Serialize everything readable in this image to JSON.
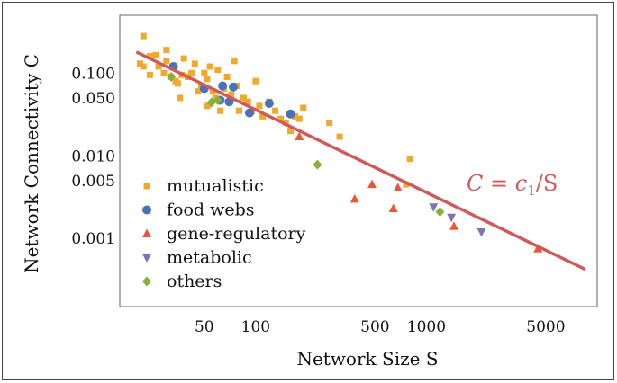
{
  "chart_data": {
    "type": "scatter",
    "xlabel": "Network Size S",
    "ylabel": "Network Connectivity C",
    "xscale": "log",
    "yscale": "log",
    "xlim": [
      16,
      10000
    ],
    "ylim": [
      0.00015,
      0.5
    ],
    "grid": false,
    "legend_position": "bottom-left",
    "x_ticks": [
      {
        "value": 50,
        "label": "50"
      },
      {
        "value": 100,
        "label": "100"
      },
      {
        "value": 500,
        "label": "500"
      },
      {
        "value": 1000,
        "label": "1000"
      },
      {
        "value": 5000,
        "label": "5000"
      }
    ],
    "y_ticks": [
      {
        "value": 0.1,
        "label": "0.100"
      },
      {
        "value": 0.05,
        "label": "0.050"
      },
      {
        "value": 0.01,
        "label": "0.010"
      },
      {
        "value": 0.005,
        "label": "0.005"
      },
      {
        "value": 0.001,
        "label": "0.001"
      }
    ],
    "fit_line": {
      "label": "C = c1/S",
      "label_parts": {
        "lhs": "C",
        "eq": " = ",
        "c": "c",
        "sub": "1",
        "rest": "/S"
      },
      "color": "#d05a5a",
      "x_range": [
        20,
        8500
      ],
      "c1": 3.6
    },
    "series": [
      {
        "name": "mutualistic",
        "marker": "square",
        "color": "#f0a830",
        "points": [
          [
            22,
            0.28
          ],
          [
            21,
            0.13
          ],
          [
            22,
            0.12
          ],
          [
            24,
            0.16
          ],
          [
            24,
            0.095
          ],
          [
            26,
            0.165
          ],
          [
            27,
            0.12
          ],
          [
            29,
            0.1
          ],
          [
            30,
            0.14
          ],
          [
            30,
            0.19
          ],
          [
            32,
            0.09
          ],
          [
            34,
            0.08
          ],
          [
            35,
            0.075
          ],
          [
            36,
            0.05
          ],
          [
            37,
            0.095
          ],
          [
            38,
            0.15
          ],
          [
            40,
            0.09
          ],
          [
            42,
            0.1
          ],
          [
            44,
            0.13
          ],
          [
            46,
            0.06
          ],
          [
            48,
            0.07
          ],
          [
            50,
            0.1
          ],
          [
            52,
            0.085
          ],
          [
            52,
            0.04
          ],
          [
            54,
            0.12
          ],
          [
            56,
            0.06
          ],
          [
            58,
            0.05
          ],
          [
            60,
            0.11
          ],
          [
            62,
            0.035
          ],
          [
            65,
            0.065
          ],
          [
            68,
            0.09
          ],
          [
            70,
            0.045
          ],
          [
            72,
            0.055
          ],
          [
            75,
            0.14
          ],
          [
            78,
            0.07
          ],
          [
            80,
            0.035
          ],
          [
            85,
            0.05
          ],
          [
            90,
            0.045
          ],
          [
            95,
            0.035
          ],
          [
            100,
            0.08
          ],
          [
            105,
            0.04
          ],
          [
            110,
            0.03
          ],
          [
            120,
            0.045
          ],
          [
            130,
            0.035
          ],
          [
            140,
            0.028
          ],
          [
            150,
            0.025
          ],
          [
            160,
            0.02
          ],
          [
            170,
            0.03
          ],
          [
            180,
            0.028
          ],
          [
            190,
            0.038
          ],
          [
            270,
            0.025
          ],
          [
            310,
            0.017
          ],
          [
            760,
            0.0045
          ],
          [
            800,
            0.0092
          ]
        ]
      },
      {
        "name": "food webs",
        "marker": "circle",
        "color": "#4a72b8",
        "points": [
          [
            33,
            0.12
          ],
          [
            50,
            0.065
          ],
          [
            62,
            0.047
          ],
          [
            64,
            0.07
          ],
          [
            70,
            0.045
          ],
          [
            74,
            0.068
          ],
          [
            92,
            0.033
          ],
          [
            120,
            0.043
          ],
          [
            160,
            0.032
          ]
        ]
      },
      {
        "name": "gene-regulatory",
        "marker": "triangle-up",
        "color": "#e8583a",
        "points": [
          [
            180,
            0.017
          ],
          [
            380,
            0.003
          ],
          [
            480,
            0.0045
          ],
          [
            640,
            0.0023
          ],
          [
            680,
            0.0041
          ],
          [
            1450,
            0.0014
          ],
          [
            4500,
            0.00075
          ]
        ]
      },
      {
        "name": "metabolic",
        "marker": "triangle-down",
        "color": "#7e74b4",
        "points": [
          [
            1100,
            0.0024
          ],
          [
            1400,
            0.0018
          ],
          [
            2100,
            0.0012
          ]
        ]
      },
      {
        "name": "others",
        "marker": "diamond",
        "color": "#88b03a",
        "points": [
          [
            32,
            0.09
          ],
          [
            55,
            0.044
          ],
          [
            60,
            0.047
          ],
          [
            230,
            0.0078
          ],
          [
            1200,
            0.0021
          ]
        ]
      }
    ]
  }
}
